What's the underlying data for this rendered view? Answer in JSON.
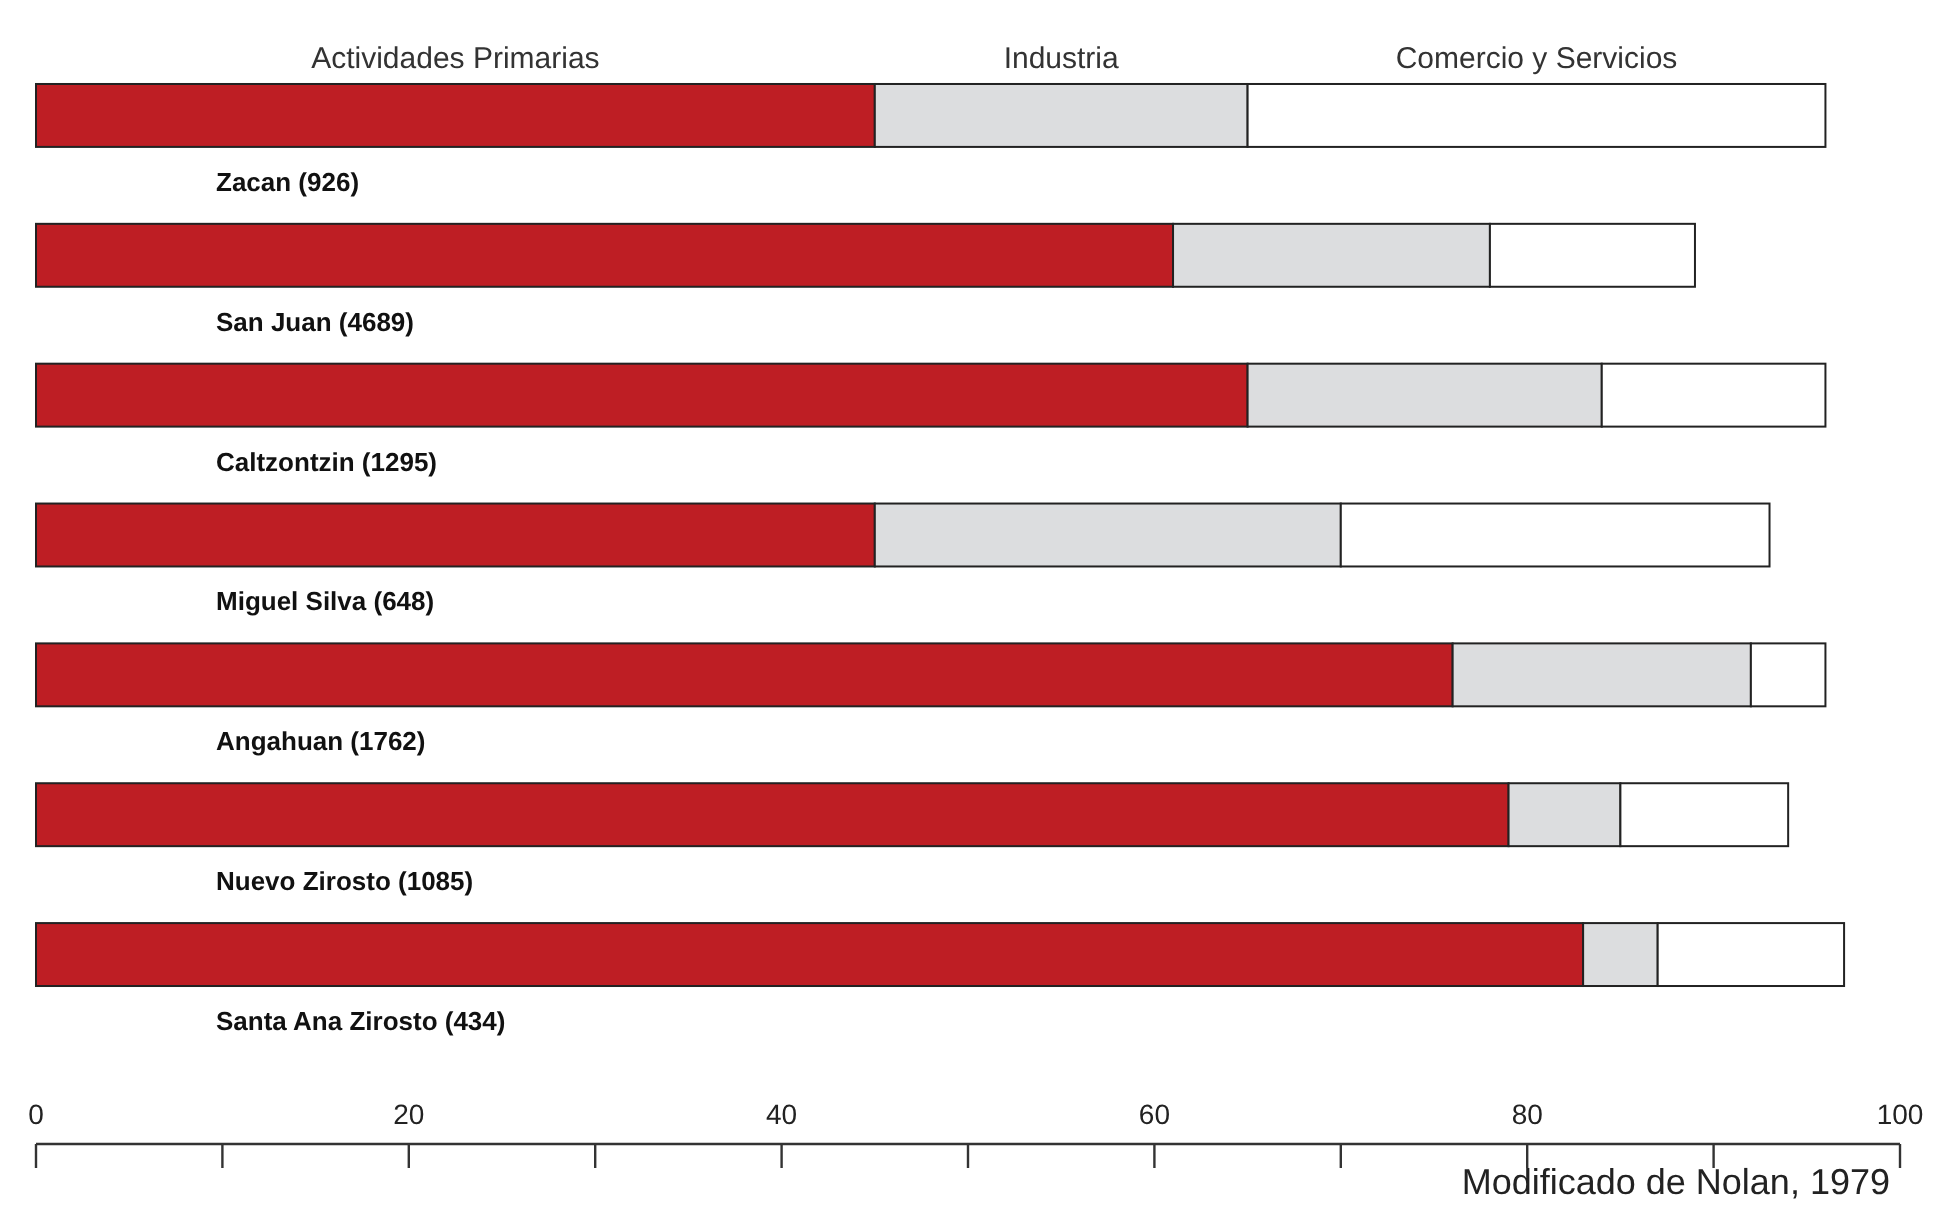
{
  "chart_data": {
    "type": "bar",
    "orientation": "horizontal",
    "stacked": true,
    "legend": "top",
    "categories": [
      "Zacan (926)",
      "San Juan (4689)",
      "Caltzontzin (1295)",
      "Miguel Silva (648)",
      "Angahuan (1762)",
      "Nuevo Zirosto (1085)",
      "Santa Ana Zirosto (434)"
    ],
    "series": [
      {
        "name": "Actividades Primarias",
        "color": "#be1e24",
        "values": [
          45,
          61,
          65,
          45,
          76,
          79,
          83
        ]
      },
      {
        "name": "Industria",
        "color": "#dcdddf",
        "values": [
          20,
          17,
          19,
          25,
          16,
          6,
          4
        ]
      },
      {
        "name": "Comercio y Servicios",
        "color": "#ffffff",
        "values": [
          31,
          11,
          12,
          23,
          4,
          9,
          10
        ]
      }
    ],
    "xlim": [
      0,
      100
    ],
    "xticks": [
      0,
      20,
      40,
      60,
      80,
      100
    ],
    "grid": false,
    "annotations": [
      "Modificado de Nolan, 1979"
    ]
  }
}
